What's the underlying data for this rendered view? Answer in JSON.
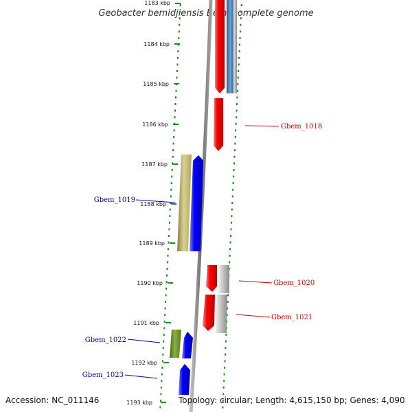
{
  "title": "Geobacter bemidjiensis Bem, complete genome",
  "footer": {
    "accession": "Accession: NC_011146",
    "summary": "Topology: circular; Length: 4,615,150 bp; Genes: 4,090"
  },
  "colors": {
    "forward_gene": "#ff0000",
    "reverse_gene": "#0000ff",
    "rna_gene": "#b4b4b4",
    "pseudo_gene": "#c8c080",
    "other_gene": "#6b8e23",
    "blue_gray_gene": "#4682b4",
    "tick": "#1a8a1a",
    "label_forward": "#cc0000",
    "label_reverse": "#0000aa"
  },
  "ticks": [
    "1183 kbp",
    "1184 kbp",
    "1185 kbp",
    "1186 kbp",
    "1187 kbp",
    "1188 kbp",
    "1189 kbp",
    "1190 kbp",
    "1191 kbp",
    "1192 kbp",
    "1193 kbp"
  ],
  "labels": {
    "gbem_1018": "Gbem_1018",
    "gbem_1019": "Gbem_1019",
    "gbem_1020": "Gbem_1020",
    "gbem_1021": "Gbem_1021",
    "gbem_1022": "Gbem_1022",
    "gbem_1023": "Gbem_1023"
  }
}
